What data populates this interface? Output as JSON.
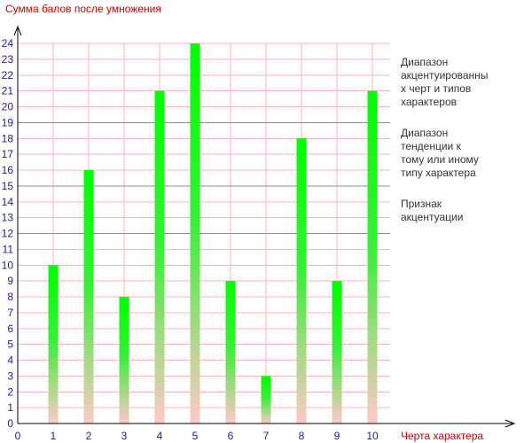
{
  "chart_data": {
    "type": "bar",
    "title": "",
    "ylabel": "Сумма балов после умножения",
    "xlabel": "Черта характера",
    "categories": [
      "1",
      "2",
      "3",
      "4",
      "5",
      "6",
      "7",
      "8",
      "9",
      "10"
    ],
    "values": [
      10,
      16,
      8,
      21,
      24,
      9,
      3,
      18,
      9,
      21
    ],
    "x_ticks": [
      "0",
      "1",
      "2",
      "3",
      "4",
      "5",
      "6",
      "7",
      "8",
      "9",
      "10"
    ],
    "y_ticks": [
      "0",
      "1",
      "2",
      "3",
      "4",
      "5",
      "6",
      "7",
      "8",
      "9",
      "10",
      "11",
      "12",
      "13",
      "14",
      "15",
      "16",
      "17",
      "18",
      "19",
      "20",
      "21",
      "22",
      "23",
      "24"
    ],
    "ylim": [
      0,
      24
    ],
    "xlim": [
      0,
      10
    ],
    "grid": true,
    "threshold_lines": [
      12,
      15,
      19
    ],
    "annotations": [
      {
        "lines": [
          "Диапазон",
          "акцентуированны",
          "х черт и типов",
          "характеров"
        ]
      },
      {
        "lines": [
          "Диапазон",
          "тенденции к",
          "тому или иному",
          "типу характера"
        ]
      },
      {
        "lines": [
          "Признак",
          "акцентуации"
        ]
      }
    ],
    "colors": {
      "bar_top": "#00ff00",
      "bar_bottom": "#ffc8c8",
      "grid": "#f5b5b5",
      "threshold": "#8c8c8c",
      "tick_label": "#1a1aaa",
      "axis_title": "#cc0000",
      "axis": "#000000"
    }
  }
}
